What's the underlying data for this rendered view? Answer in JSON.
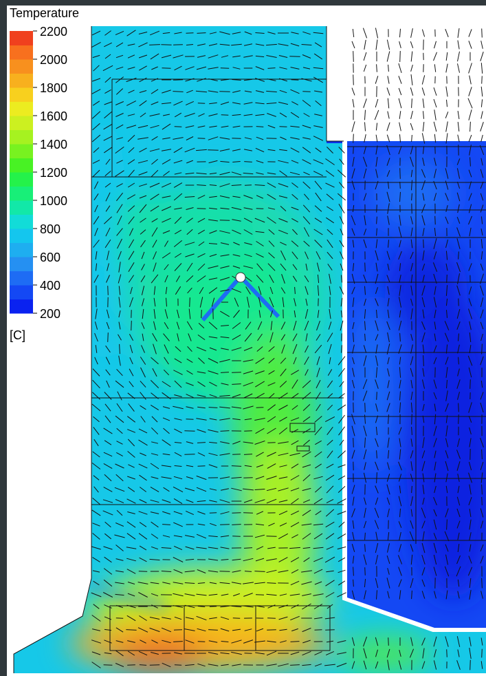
{
  "chart_data": {
    "type": "contour",
    "title": "Temperature",
    "unit": "[C]",
    "clim": [
      200,
      2200
    ],
    "ticks": [
      200,
      400,
      600,
      800,
      1000,
      1200,
      1400,
      1600,
      1800,
      2000,
      2200
    ],
    "colormap": [
      "#0a22f0",
      "#1448f4",
      "#1e6cf4",
      "#2590f2",
      "#1eaef0",
      "#14c6ee",
      "#12dcd8",
      "#12e8a8",
      "#18ef78",
      "#24f24a",
      "#48f224",
      "#78f220",
      "#a6f220",
      "#ccf020",
      "#ecec20",
      "#f8d01e",
      "#f8b01e",
      "#f8901e",
      "#f8701e",
      "#f0401e"
    ]
  }
}
